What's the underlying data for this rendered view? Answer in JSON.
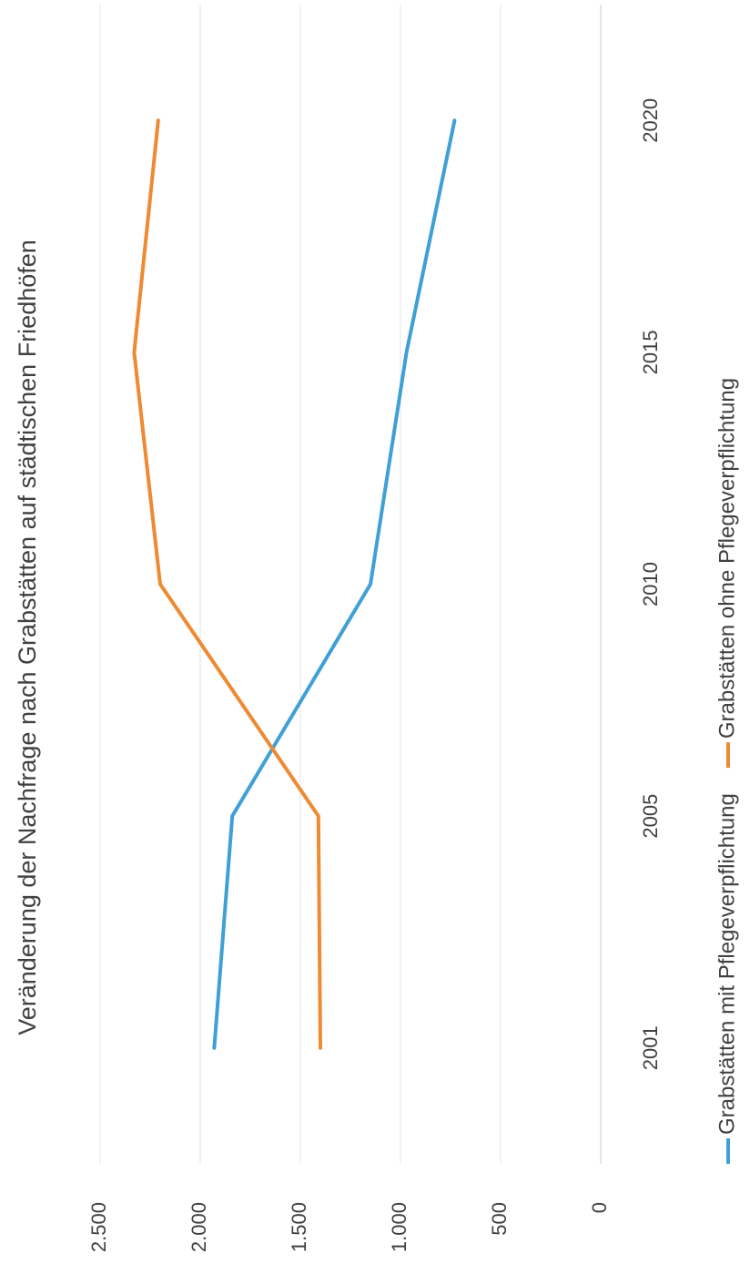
{
  "chart_data": {
    "type": "line",
    "title": "Veränderung der Nachfrage nach Grabstätten auf städtischen Friedhöfen",
    "categories": [
      "2001",
      "2005",
      "2010",
      "2015",
      "2020"
    ],
    "series": [
      {
        "name": "Grabstätten mit Pflegeverpflichtung",
        "color": "#3fa0d6",
        "values": [
          1930,
          1840,
          1150,
          970,
          730
        ]
      },
      {
        "name": "Grabstätten ohne Pflegeverpflichtung",
        "color": "#ee8a32",
        "values": [
          1400,
          1410,
          2200,
          2330,
          2210
        ]
      }
    ],
    "ylim": [
      0,
      2500
    ],
    "yticks": [
      0,
      500,
      {
        "value": 1000,
        "label": "1.000"
      },
      {
        "value": 1500,
        "label": "1.500"
      },
      {
        "value": 2000,
        "label": "2.000"
      },
      {
        "value": 2500,
        "label": "2.500"
      }
    ],
    "grid": true
  }
}
